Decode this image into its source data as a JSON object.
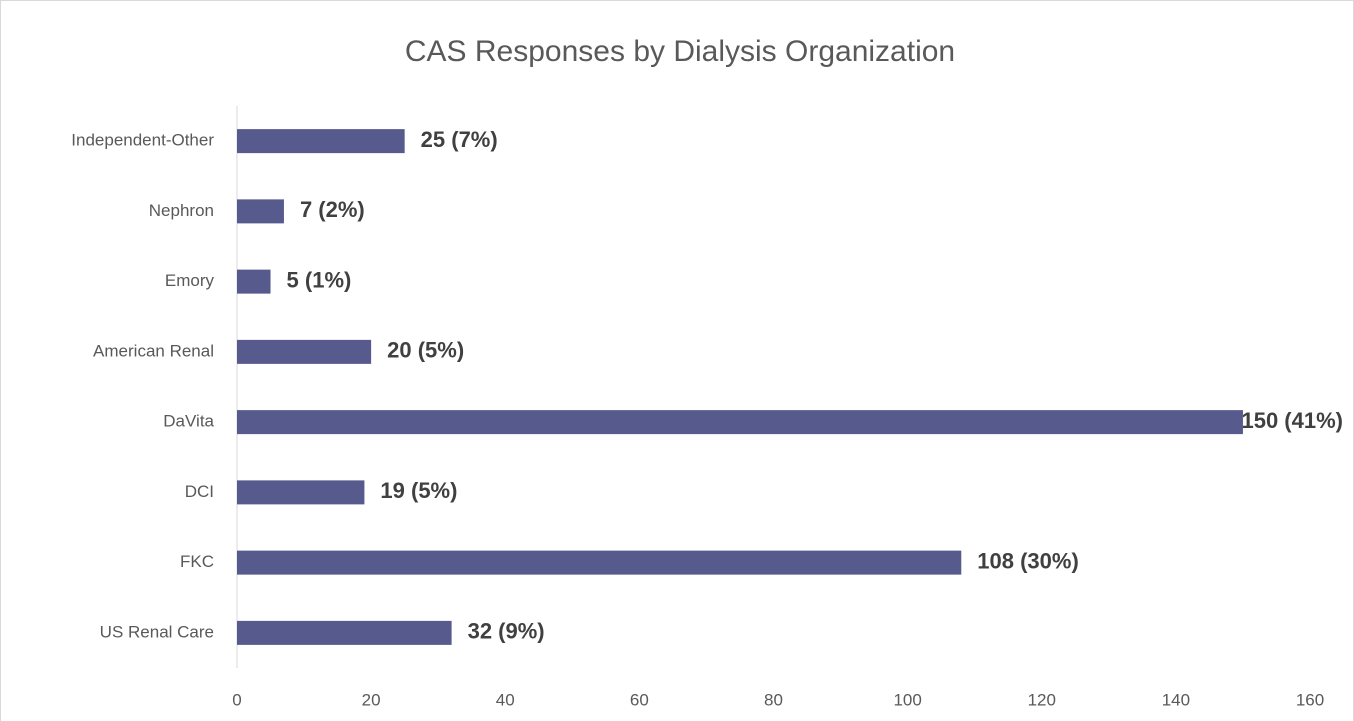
{
  "chart_data": {
    "type": "hbar",
    "title": "CAS Responses by Dialysis Organization",
    "categories": [
      "Independent-Other",
      "Nephron",
      "Emory",
      "American Renal",
      "DaVita",
      "DCI",
      "FKC",
      "US Renal Care"
    ],
    "values": [
      25,
      7,
      5,
      20,
      150,
      19,
      108,
      32
    ],
    "value_labels": [
      "25 (7%)",
      "7 (2%)",
      "5 (1%)",
      "20 (5%)",
      "150 (41%)",
      "19 (5%)",
      "108 (30%)",
      "32 (9%)"
    ],
    "color": "#575a8c",
    "xlim": [
      0,
      160
    ],
    "xticks": [
      0,
      20,
      40,
      60,
      80,
      100,
      120,
      140,
      160
    ],
    "grid": false
  }
}
